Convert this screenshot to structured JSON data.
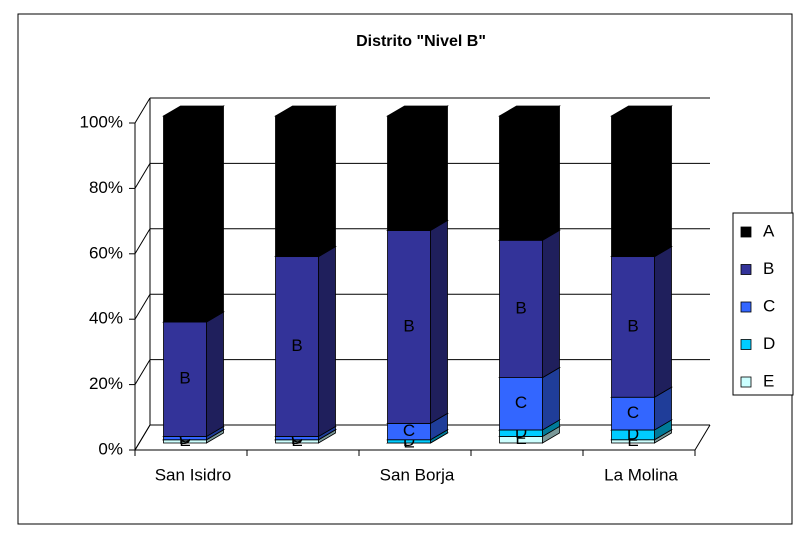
{
  "chart_data": {
    "type": "bar3d_stacked_percent",
    "title": "Distrito \"Nivel B\"",
    "categories": [
      "San Isidro",
      null,
      "San Borja",
      null,
      "La Molina"
    ],
    "series": [
      {
        "name": "A",
        "color": "#000000",
        "values": [
          63,
          43,
          35,
          38,
          43
        ]
      },
      {
        "name": "B",
        "color": "#333399",
        "values": [
          35,
          55,
          59,
          42,
          43
        ]
      },
      {
        "name": "C",
        "color": "#3366ff",
        "values": [
          1,
          1,
          5,
          16,
          10
        ]
      },
      {
        "name": "D",
        "color": "#00ccff",
        "values": [
          0,
          0,
          1,
          2,
          3
        ]
      },
      {
        "name": "E",
        "color": "#ccffff",
        "values": [
          1,
          1,
          0,
          2,
          1
        ]
      }
    ],
    "ylim": [
      0,
      100
    ],
    "yticks": [
      {
        "value": 0,
        "label": "0%"
      },
      {
        "value": 20,
        "label": "20%"
      },
      {
        "value": 40,
        "label": "40%"
      },
      {
        "value": 60,
        "label": "60%"
      },
      {
        "value": 80,
        "label": "80%"
      },
      {
        "value": 100,
        "label": "100%"
      }
    ],
    "grid": true,
    "legend": "right"
  }
}
